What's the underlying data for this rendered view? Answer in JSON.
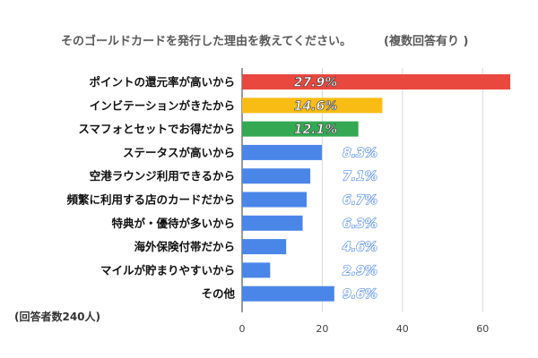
{
  "chart_data": {
    "type": "bar",
    "orientation": "horizontal",
    "title": "そのゴールドカードを発行した理由を教えてください。",
    "subtitle": "(複数回答有り )",
    "note": "(回答者数240人)",
    "categories": [
      "ポイントの還元率が高いから",
      "インビテーションがきたから",
      "スマフォとセットでお得だから",
      "ステータスが高いから",
      "空港ラウンジ利用できるから",
      "頻繁に利用する店のカードだから",
      "特典が・優待が多いから",
      "海外保険付帯だから",
      "マイルが貯まりやすいから",
      "その他"
    ],
    "values": [
      66.9,
      35.0,
      29.0,
      19.9,
      17.0,
      16.1,
      15.1,
      11.0,
      7.0,
      23.0
    ],
    "data_labels": [
      "27.9%",
      "14.6%",
      "12.1%",
      "8.3%",
      "7.1%",
      "6.7%",
      "6.3%",
      "4.6%",
      "2.9%",
      "9.6%"
    ],
    "bar_colors": [
      "#e8483e",
      "#f9bc14",
      "#34a853",
      "#4a86e8",
      "#4a86e8",
      "#4a86e8",
      "#4a86e8",
      "#4a86e8",
      "#4a86e8",
      "#4a86e8"
    ],
    "xlim": [
      0,
      68
    ],
    "xticks": [
      0,
      20,
      40,
      60
    ],
    "grid": true,
    "legend": "none"
  }
}
